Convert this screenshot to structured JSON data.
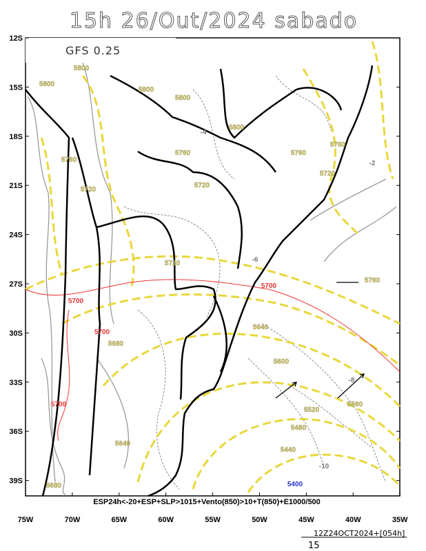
{
  "header": {
    "title": "15h 26/Out/2024 sabado",
    "model": "GFS 0.25"
  },
  "axes": {
    "lat_labels": [
      "12S",
      "15S",
      "18S",
      "21S",
      "24S",
      "27S",
      "30S",
      "33S",
      "36S",
      "39S"
    ],
    "lon_labels": [
      "75W",
      "70W",
      "65W",
      "60W",
      "55W",
      "50W",
      "45W",
      "40W",
      "35W"
    ]
  },
  "contour_labels": [
    "5800",
    "5800",
    "5800",
    "5800",
    "5800",
    "5760",
    "5760",
    "5760",
    "5760",
    "5720",
    "5720",
    "5720",
    "5720",
    "5700",
    "5700",
    "5700",
    "5700",
    "5680",
    "5680",
    "5640",
    "5640",
    "5600",
    "5560",
    "5520",
    "5480",
    "5440",
    "5400",
    "-2",
    "-4",
    "-6",
    "-8",
    "-10",
    "5760"
  ],
  "footer": {
    "caption": "ESP24h<-20+ESP+SLP>1015+Vento(850)>10+T(850)+E1000/500",
    "run": "12Z24OCT2024+[054h]",
    "vector_scale": "15"
  }
}
